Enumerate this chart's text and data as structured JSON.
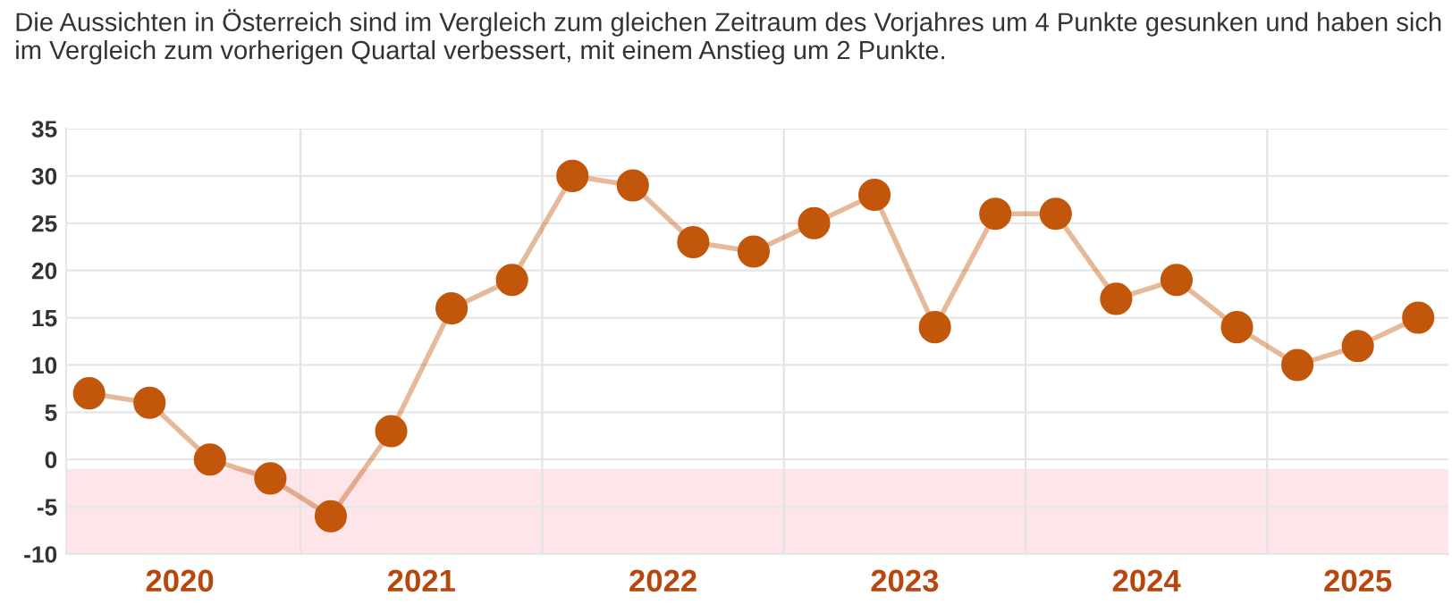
{
  "chart_data": {
    "type": "line",
    "title": "Die Aussichten in Österreich sind im Vergleich zum gleichen Zeitraum des Vorjahres um 4 Punkte gesunken und haben sich im Vergleich zum vorherigen Quartal verbessert, mit einem Anstieg um 2 Punkte.",
    "x": [
      2020.125,
      2020.375,
      2020.625,
      2020.875,
      2021.125,
      2021.375,
      2021.625,
      2021.875,
      2022.125,
      2022.375,
      2022.625,
      2022.875,
      2023.125,
      2023.375,
      2023.625,
      2023.875,
      2024.125,
      2024.375,
      2024.625,
      2024.875,
      2025.125,
      2025.375,
      2025.625
    ],
    "series": [
      {
        "color": "#c2570c",
        "values": [
          7,
          6,
          0,
          -2,
          -6,
          3,
          16,
          19,
          30,
          29,
          23,
          22,
          25,
          28,
          14,
          26,
          26,
          17,
          19,
          14,
          10,
          12,
          15
        ]
      }
    ],
    "marker": "circle",
    "xlim": [
      2020.03,
      2025.75
    ],
    "xticks": [
      {
        "value": 2020.5,
        "label": "2020"
      },
      {
        "value": 2021.5,
        "label": "2021"
      },
      {
        "value": 2022.5,
        "label": "2022"
      },
      {
        "value": 2023.5,
        "label": "2023"
      },
      {
        "value": 2024.5,
        "label": "2024"
      },
      {
        "value": 2025.375,
        "label": "2025"
      }
    ],
    "ylim": [
      -10,
      35
    ],
    "yticks": [
      -10,
      -5,
      0,
      5,
      10,
      15,
      20,
      25,
      30,
      35
    ],
    "grid": "y",
    "ref_lines": [
      {
        "axis": "x",
        "value": 2021,
        "color": "#e3e3e3"
      },
      {
        "axis": "x",
        "value": 2022,
        "color": "#e3e3e3"
      },
      {
        "axis": "x",
        "value": 2023,
        "color": "#e3e3e3"
      },
      {
        "axis": "x",
        "value": 2024,
        "color": "#e3e3e3"
      },
      {
        "axis": "x",
        "value": 2025,
        "color": "#e3e3e3"
      }
    ],
    "bands": [
      {
        "axis": "y",
        "from": -10,
        "to": -1,
        "color": "#fde5ea"
      }
    ]
  }
}
